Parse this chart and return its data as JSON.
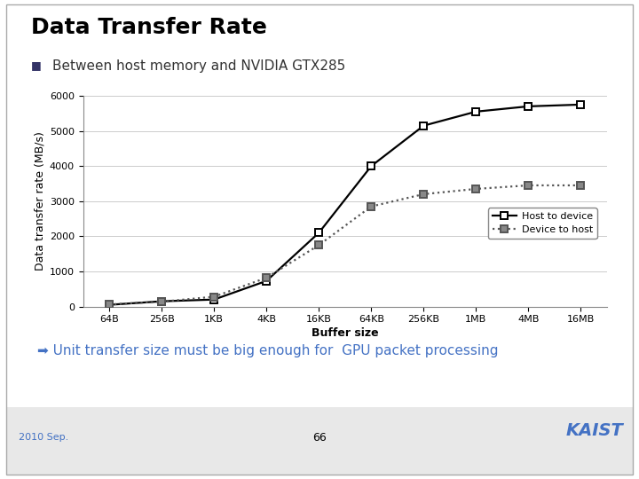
{
  "title": "Data Transfer Rate",
  "subtitle": "§ Between host memory and NVIDIA GTX285",
  "xlabel": "Buffer size",
  "ylabel": "Data transfer rate (MB/s)",
  "annotation": "➡ Unit transfer size must be big enough for  GPU packet processing",
  "page_number": "66",
  "footer_left": "2010 Sep.",
  "x_labels": [
    "64B",
    "256B",
    "1KB",
    "4KB",
    "16KB",
    "64KB",
    "256KB",
    "1MB",
    "4MB",
    "16MB"
  ],
  "host_to_device": [
    50,
    150,
    200,
    730,
    2100,
    4000,
    5150,
    5550,
    5700,
    5750
  ],
  "device_to_host": [
    60,
    140,
    280,
    820,
    1750,
    2850,
    3200,
    3350,
    3450,
    3450
  ],
  "ylim": [
    0,
    6000
  ],
  "yticks": [
    0,
    1000,
    2000,
    3000,
    4000,
    5000,
    6000
  ],
  "line1_color": "#000000",
  "line2_color": "#555555",
  "marker_color_h2d": "#ffffff",
  "marker_color_d2h": "#888888",
  "bg_color": "#ffffff",
  "grid_color": "#cccccc",
  "accent_color": "#4472c4",
  "annotation_color": "#4472c4",
  "subtitle_color": "#333333",
  "title_fontsize": 18,
  "subtitle_fontsize": 11,
  "axis_label_fontsize": 9,
  "tick_fontsize": 8,
  "legend_fontsize": 8,
  "annotation_fontsize": 11
}
